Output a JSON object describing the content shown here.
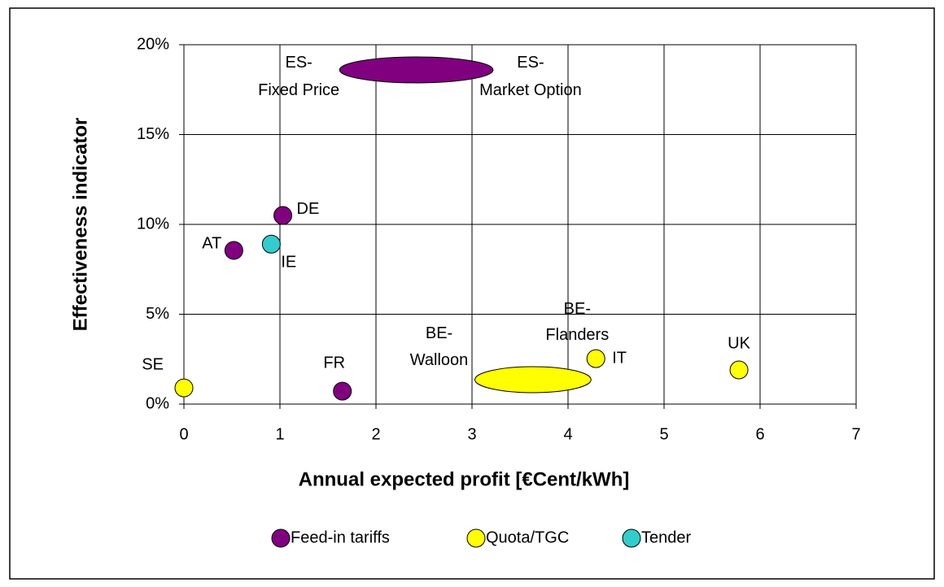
{
  "chart_data": {
    "type": "scatter",
    "x_label": "Annual expected profit [€Cent/kWh]",
    "y_label": "Effectiveness indicator",
    "xlim": [
      0,
      7
    ],
    "xticks": [
      0,
      1,
      2,
      3,
      4,
      5,
      6,
      7
    ],
    "ylim": [
      0,
      20
    ],
    "yticks": [
      {
        "value": 0,
        "label": "0%"
      },
      {
        "value": 5,
        "label": "5%"
      },
      {
        "value": 10,
        "label": "10%"
      },
      {
        "value": 15,
        "label": "15%"
      },
      {
        "value": 20,
        "label": "20%"
      }
    ],
    "grid": true,
    "legend": "bottom",
    "series": [
      {
        "name": "Feed-in tariffs",
        "color": "#800080",
        "points": [
          {
            "label": "AT",
            "x": 0.52,
            "y": 8.55
          },
          {
            "label": "DE",
            "x": 1.03,
            "y": 10.5
          },
          {
            "label": "FR",
            "x": 1.65,
            "y": 0.72
          }
        ],
        "ranges": [
          {
            "x": [
              1.62,
              3.22
            ],
            "y": 18.6,
            "labels": [
              [
                "ES-",
                "Fixed Price"
              ],
              [
                "ES-",
                "Market Option"
              ]
            ]
          }
        ]
      },
      {
        "name": "Quota/TGC",
        "color": "#ffff00",
        "points": [
          {
            "label": "SE",
            "x": 0,
            "y": 0.9
          },
          {
            "label": "IT",
            "x": 4.29,
            "y": 2.53
          },
          {
            "label": "UK",
            "x": 5.78,
            "y": 1.9
          }
        ],
        "ranges": [
          {
            "x": [
              3.03,
              4.24
            ],
            "y": 1.36,
            "labels": [
              [
                "BE-",
                "Walloon"
              ],
              [
                "BE-",
                "Flanders"
              ]
            ]
          }
        ]
      },
      {
        "name": "Tender",
        "color": "#33cccc",
        "points": [
          {
            "label": "IE",
            "x": 0.91,
            "y": 8.9
          }
        ],
        "ranges": []
      }
    ]
  }
}
